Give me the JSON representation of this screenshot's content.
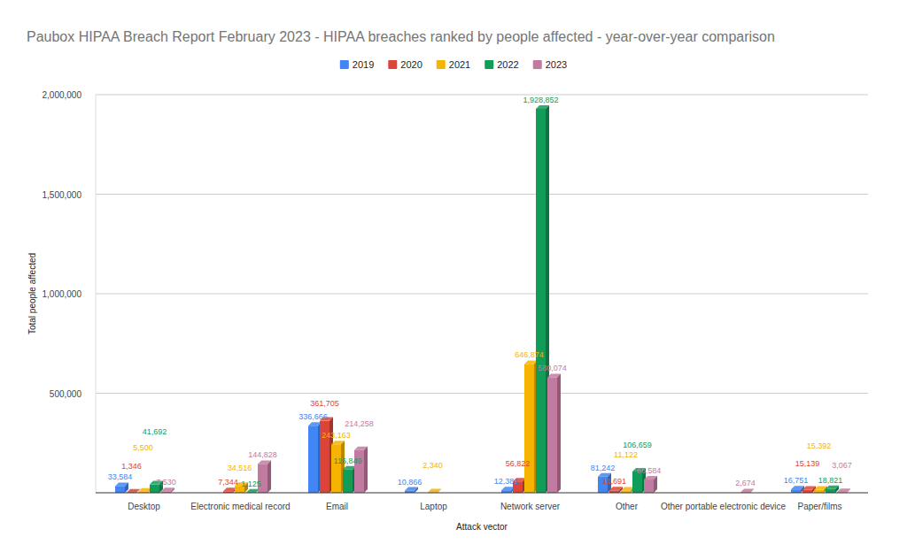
{
  "chart_data": {
    "type": "bar",
    "title": "Paubox HIPAA Breach Report February 2023 - HIPAA breaches ranked by people affected - year-over-year comparison",
    "x_label": "Attack vector",
    "y_label": "Total people affected",
    "categories": [
      "Desktop",
      "Electronic medical record",
      "Email",
      "Laptop",
      "Network server",
      "Other",
      "Other portable electronic device",
      "Paper/films"
    ],
    "series": [
      {
        "name": "2019",
        "color": "#4285f4",
        "values": [
          33584,
          null,
          336666,
          10866,
          12381,
          81242,
          null,
          16751
        ],
        "value_labels": [
          "33,584",
          null,
          "336,666",
          "10,866",
          "12,381",
          "81,242",
          null,
          "16,751"
        ]
      },
      {
        "name": "2020",
        "color": "#db4437",
        "values": [
          1346,
          7344,
          361705,
          null,
          56822,
          11691,
          null,
          15139
        ],
        "value_labels": [
          "1,346",
          "7,344",
          "361,705",
          null,
          "56,822",
          "11,691",
          null,
          "15,139"
        ]
      },
      {
        "name": "2021",
        "color": "#f4b400",
        "values": [
          5500,
          34516,
          243163,
          2340,
          646874,
          11122,
          null,
          15392
        ],
        "value_labels": [
          "5,500",
          "34,516",
          "243,163",
          "2,340",
          "646,874",
          "11,122",
          null,
          "15,392"
        ]
      },
      {
        "name": "2022",
        "color": "#0f9d58",
        "values": [
          41692,
          1125,
          116849,
          null,
          1928852,
          106659,
          null,
          18821
        ],
        "value_labels": [
          "41,692",
          "1,125",
          "116,849",
          null,
          "1,928,852",
          "106,659",
          null,
          "18,821"
        ]
      },
      {
        "name": "2023",
        "color": "#c27ba0",
        "values": [
          7530,
          144828,
          214258,
          null,
          580074,
          66584,
          2674,
          3067
        ],
        "value_labels": [
          "7,530",
          "144,828",
          "214,258",
          null,
          "580,074",
          "66,584",
          "2,674",
          "3,067"
        ]
      }
    ],
    "ylim": [
      0,
      2000000
    ],
    "yticks": [
      {
        "value": 500000,
        "label": "500,000"
      },
      {
        "value": 1000000,
        "label": "1,000,000"
      },
      {
        "value": 1500000,
        "label": "1,500,000"
      },
      {
        "value": 2000000,
        "label": "2,000,000"
      }
    ],
    "grid": true,
    "legend": "top",
    "data_labels": true
  }
}
